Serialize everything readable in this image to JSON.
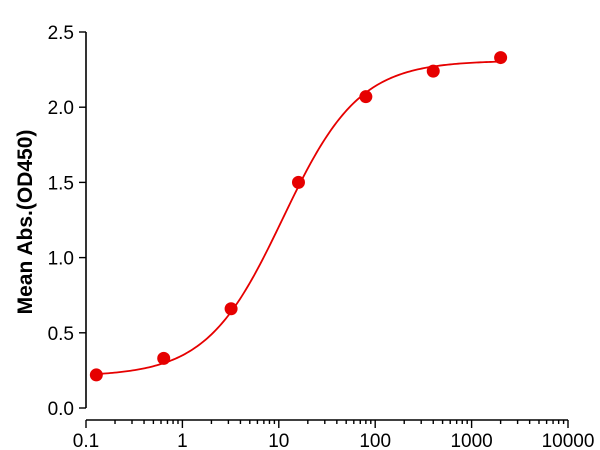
{
  "chart_data": {
    "type": "scatter",
    "title": "",
    "xlabel": "",
    "ylabel": "Mean Abs.(OD450)",
    "x_scale": "log",
    "xlim": [
      0.1,
      10000
    ],
    "ylim": [
      0,
      2.5
    ],
    "x_ticks": [
      0.1,
      1,
      10,
      100,
      1000,
      10000
    ],
    "x_tick_labels": [
      "0.1",
      "1",
      "10",
      "100",
      "1000",
      "10000"
    ],
    "y_ticks": [
      0,
      0.5,
      1,
      1.5,
      2,
      2.5
    ],
    "y_tick_labels": [
      "0.0",
      "0.5",
      "1.0",
      "1.5",
      "2.0",
      "2.5"
    ],
    "grid": false,
    "legend": "none",
    "series": [
      {
        "color": "#e60000",
        "x": [
          0.128,
          0.64,
          3.2,
          16,
          80,
          400,
          2000
        ],
        "y": [
          0.22,
          0.33,
          0.66,
          1.5,
          2.07,
          2.24,
          2.33
        ],
        "fit_curve": "4PL"
      }
    ]
  }
}
